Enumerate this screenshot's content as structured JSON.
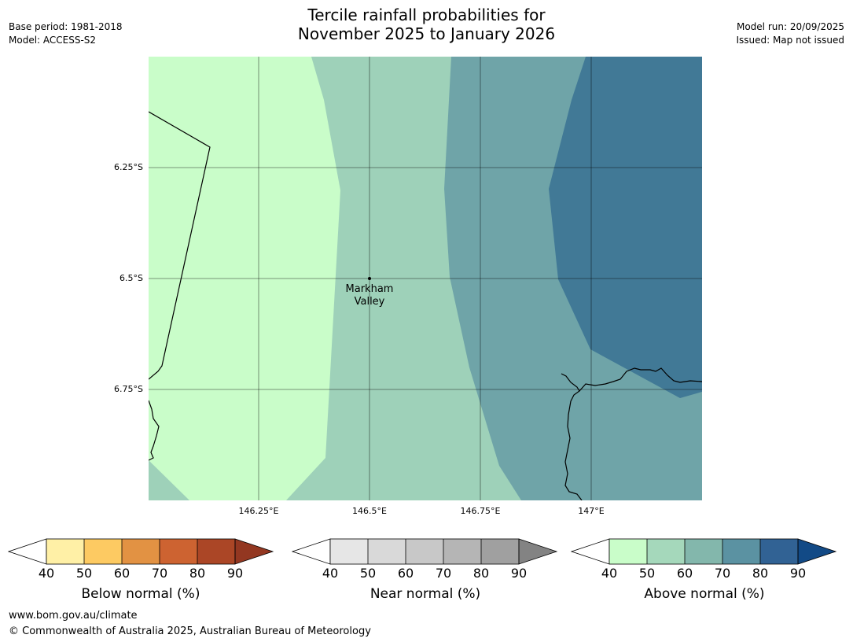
{
  "title_line1": "Tercile rainfall probabilities for",
  "title_line2": "November 2025 to January 2026",
  "base_period": "Base period: 1981-2018",
  "model": "Model: ACCESS-S2",
  "model_run": "Model run: 20/09/2025",
  "issued": "Issued: Map not issued",
  "lat_labels": [
    "6.25°S",
    "6.5°S",
    "6.75°S"
  ],
  "lon_labels": [
    "146.25°E",
    "146.5°E",
    "146.75°E",
    "147°E"
  ],
  "place_line1": "Markham",
  "place_line2": "Valley",
  "legend_ticks": [
    "40",
    "50",
    "60",
    "70",
    "80",
    "90"
  ],
  "legends": [
    {
      "title": "Below normal (%)",
      "colors": [
        "#fff0a6",
        "#fdca62",
        "#e29243",
        "#cd6331",
        "#ab4626",
        "#933721"
      ]
    },
    {
      "title": "Near normal (%)",
      "colors": [
        "#e6e6e6",
        "#d9d9d9",
        "#c8c8c8",
        "#b5b5b5",
        "#a0a0a0",
        "#838383"
      ]
    },
    {
      "title": "Above normal (%)",
      "colors": [
        "#c9fdc9",
        "#a5d8bb",
        "#83b7ac",
        "#5b92a2",
        "#316294",
        "#124a86"
      ]
    }
  ],
  "map_colors": {
    "band_40_50": "#c9fdc9",
    "band_50_60": "#9ed1b9",
    "band_60_70": "#6fa4a8",
    "band_70_80": "#417996"
  },
  "footer_url": "www.bom.gov.au/climate",
  "footer_copyright": "© Commonwealth of Australia 2025, Australian Bureau of Meteorology"
}
